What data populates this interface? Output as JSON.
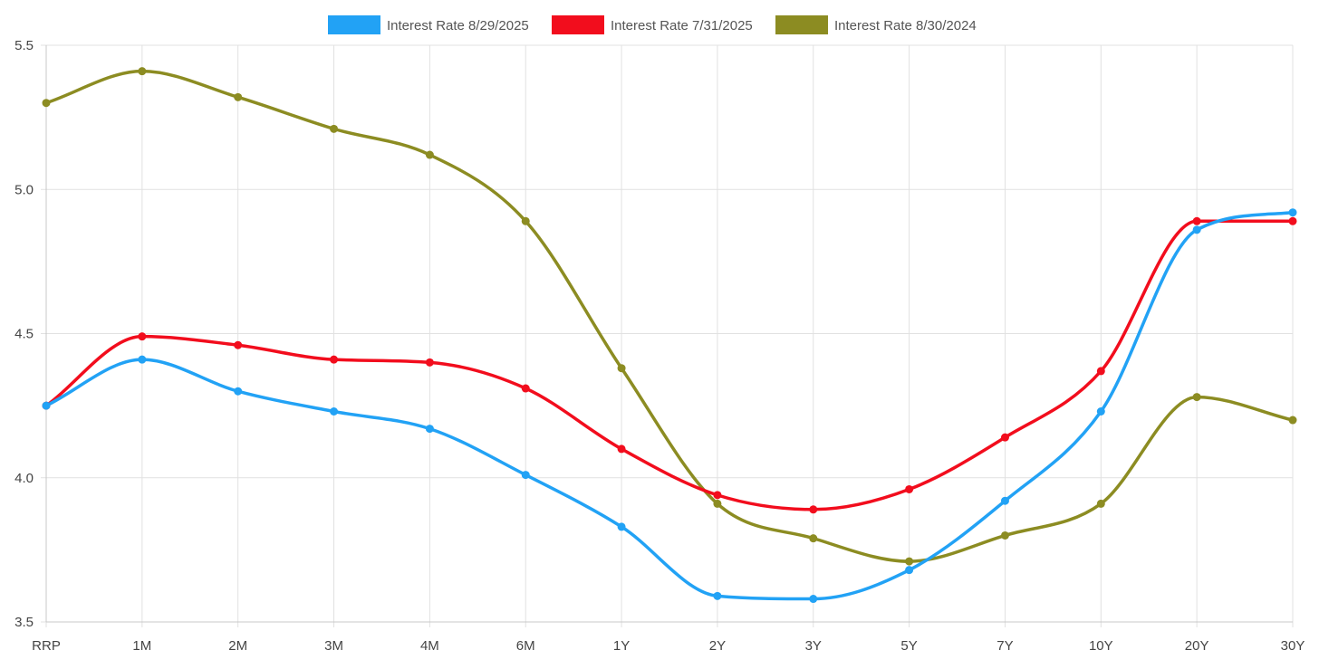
{
  "chart_data": {
    "type": "line",
    "title": "",
    "xlabel": "",
    "ylabel": "",
    "categories": [
      "RRP",
      "1M",
      "2M",
      "3M",
      "4M",
      "6M",
      "1Y",
      "2Y",
      "3Y",
      "5Y",
      "7Y",
      "10Y",
      "20Y",
      "30Y"
    ],
    "ylim": [
      3.5,
      5.5
    ],
    "yticks": [
      "3.5",
      "4.0",
      "4.5",
      "5.0",
      "5.5"
    ],
    "ytick_values": [
      3.5,
      4.0,
      4.5,
      5.0,
      5.5
    ],
    "grid": true,
    "legend_position": "top-center",
    "series": [
      {
        "name": "Interest Rate 8/29/2025",
        "color": "#22a2f5",
        "values": [
          4.25,
          4.41,
          4.3,
          4.23,
          4.17,
          4.01,
          3.83,
          3.59,
          3.58,
          3.68,
          3.92,
          4.23,
          4.86,
          4.92
        ]
      },
      {
        "name": "Interest Rate 7/31/2025",
        "color": "#f20d1d",
        "values": [
          4.25,
          4.49,
          4.46,
          4.41,
          4.4,
          4.31,
          4.1,
          3.94,
          3.89,
          3.96,
          4.14,
          4.37,
          4.89,
          4.89
        ]
      },
      {
        "name": "Interest Rate 8/30/2024",
        "color": "#8c8c22",
        "values": [
          5.3,
          5.41,
          5.32,
          5.21,
          5.12,
          4.89,
          4.38,
          3.91,
          3.79,
          3.71,
          3.8,
          3.91,
          4.28,
          4.2
        ]
      }
    ]
  }
}
